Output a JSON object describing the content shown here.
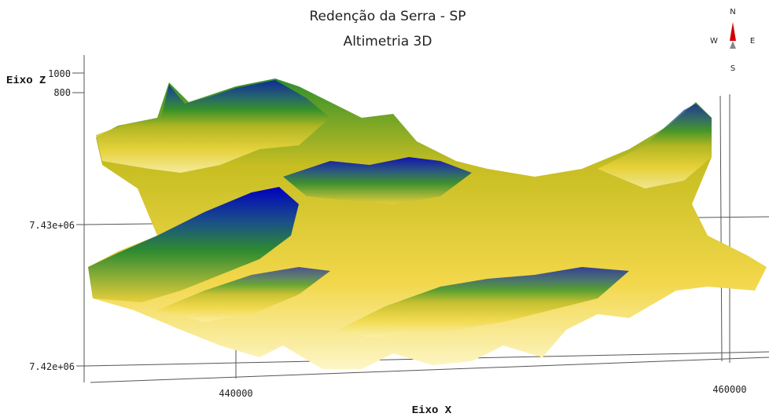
{
  "header": {
    "title": "Redenção da Serra - SP",
    "subtitle": "Altimetria 3D"
  },
  "compass": {
    "north": "N",
    "south": "S",
    "west": "W",
    "east": "E"
  },
  "axes": {
    "z": {
      "label": "Eixo Z",
      "ticks": [
        "1000",
        "800"
      ]
    },
    "y": {
      "ticks": [
        "7.43e+06",
        "7.42e+06"
      ]
    },
    "x": {
      "label": "Eixo X",
      "ticks": [
        "440000",
        "460000"
      ]
    }
  }
}
